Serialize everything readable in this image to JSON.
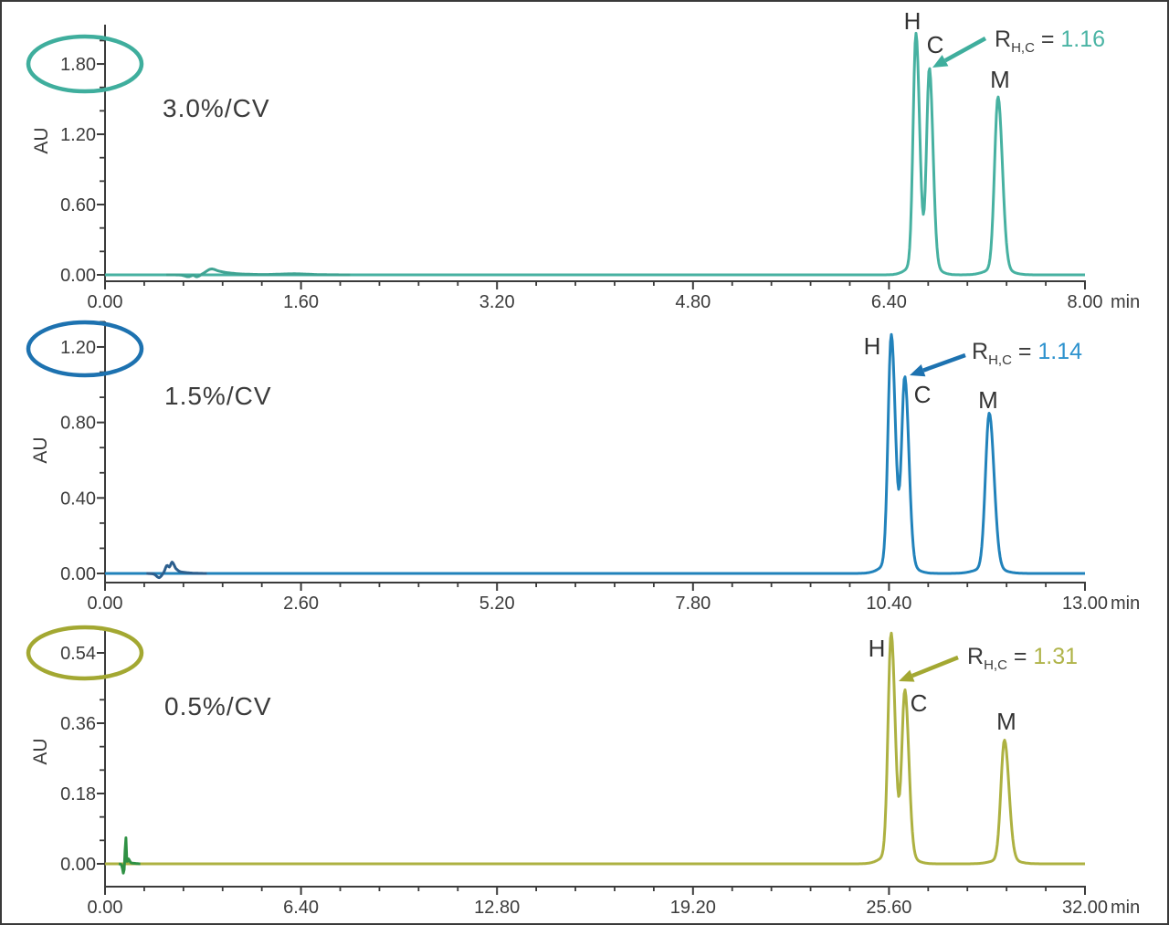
{
  "figure": {
    "description": "Three stacked chromatograms comparing gradient slopes",
    "y_axis_label": "AU",
    "x_axis_unit": "min",
    "text_color": "#3b3b3b"
  },
  "chart_data": [
    {
      "type": "line",
      "panel": "top",
      "gradient_label": "3.0%/CV",
      "ylabel": "AU",
      "x_unit": "min",
      "x_max": 8.0,
      "x_ticks": [
        "0.00",
        "1.60",
        "3.20",
        "4.80",
        "6.40",
        "8.00"
      ],
      "y_ticks": [
        "0.00",
        "0.60",
        "1.20",
        "1.80"
      ],
      "circled_y_tick": "1.80",
      "resolution": {
        "prefix": "R",
        "subscript": "H,C",
        "eq": " = ",
        "value": "1.16"
      },
      "colors": {
        "trace": "#47b1a1",
        "accent": "#3fae9d",
        "value": "#4ab4a4",
        "injection": "#3fa392"
      },
      "peaks": [
        {
          "label": "H",
          "time_min": 6.62,
          "height_au": 2.04
        },
        {
          "label": "C",
          "time_min": 6.73,
          "height_au": 1.74
        },
        {
          "label": "M",
          "time_min": 7.29,
          "height_au": 1.52
        }
      ],
      "injection_disturbance": [
        [
          0.5,
          0
        ],
        [
          0.62,
          -0.002
        ],
        [
          0.68,
          -0.016
        ],
        [
          0.72,
          -0.004
        ],
        [
          0.75,
          -0.016
        ],
        [
          0.8,
          0.012
        ],
        [
          0.865,
          0.05
        ],
        [
          0.93,
          0.032
        ],
        [
          1.0,
          0.018
        ],
        [
          1.1,
          0.008
        ],
        [
          1.3,
          0.003
        ],
        [
          1.55,
          0.009
        ],
        [
          1.75,
          0.002
        ],
        [
          2.0,
          0
        ]
      ]
    },
    {
      "type": "line",
      "panel": "middle",
      "gradient_label": "1.5%/CV",
      "ylabel": "AU",
      "x_unit": "min",
      "x_max": 13.0,
      "x_ticks": [
        "0.00",
        "2.60",
        "5.20",
        "7.80",
        "10.40",
        "13.00"
      ],
      "y_ticks": [
        "0.00",
        "0.40",
        "0.80",
        "1.20"
      ],
      "circled_y_tick": "1.20",
      "resolution": {
        "prefix": "R",
        "subscript": "H,C",
        "eq": " = ",
        "value": "1.14"
      },
      "colors": {
        "trace": "#2182bb",
        "accent": "#1d72b0",
        "value": "#2e93ce",
        "injection": "#2c5f8e"
      },
      "peaks": [
        {
          "label": "H",
          "time_min": 10.43,
          "height_au": 1.25
        },
        {
          "label": "C",
          "time_min": 10.61,
          "height_au": 1.02
        },
        {
          "label": "M",
          "time_min": 11.73,
          "height_au": 0.85
        }
      ],
      "injection_disturbance": [
        [
          0.55,
          0
        ],
        [
          0.65,
          -0.004
        ],
        [
          0.72,
          -0.022
        ],
        [
          0.78,
          0.006
        ],
        [
          0.82,
          0.042
        ],
        [
          0.855,
          0.034
        ],
        [
          0.89,
          0.06
        ],
        [
          0.94,
          0.026
        ],
        [
          1.0,
          0.009
        ],
        [
          1.15,
          0.002
        ],
        [
          1.35,
          0
        ]
      ]
    },
    {
      "type": "line",
      "panel": "bottom",
      "gradient_label": "0.5%/CV",
      "ylabel": "AU",
      "x_unit": "min",
      "x_max": 32.0,
      "x_ticks": [
        "0.00",
        "6.40",
        "12.80",
        "19.20",
        "25.60",
        "32.00"
      ],
      "y_ticks": [
        "0.00",
        "0.18",
        "0.36",
        "0.54"
      ],
      "circled_y_tick": "0.54",
      "resolution": {
        "prefix": "R",
        "subscript": "H,C",
        "eq": " = ",
        "value": "1.31"
      },
      "colors": {
        "trace": "#adb141",
        "accent": "#a3a832",
        "value": "#b0b44a",
        "injection": "#2f9144"
      },
      "peaks": [
        {
          "label": "H",
          "time_min": 25.67,
          "height_au": 0.585
        },
        {
          "label": "C",
          "time_min": 26.12,
          "height_au": 0.436
        },
        {
          "label": "M",
          "time_min": 29.37,
          "height_au": 0.317
        }
      ],
      "injection_disturbance": [
        [
          0.45,
          0
        ],
        [
          0.55,
          -0.004
        ],
        [
          0.6,
          -0.024
        ],
        [
          0.64,
          0.0
        ],
        [
          0.675,
          0.073
        ],
        [
          0.715,
          0.004
        ],
        [
          0.76,
          0.013
        ],
        [
          0.84,
          0.003
        ],
        [
          1.0,
          0.001
        ],
        [
          1.15,
          0
        ]
      ]
    }
  ]
}
